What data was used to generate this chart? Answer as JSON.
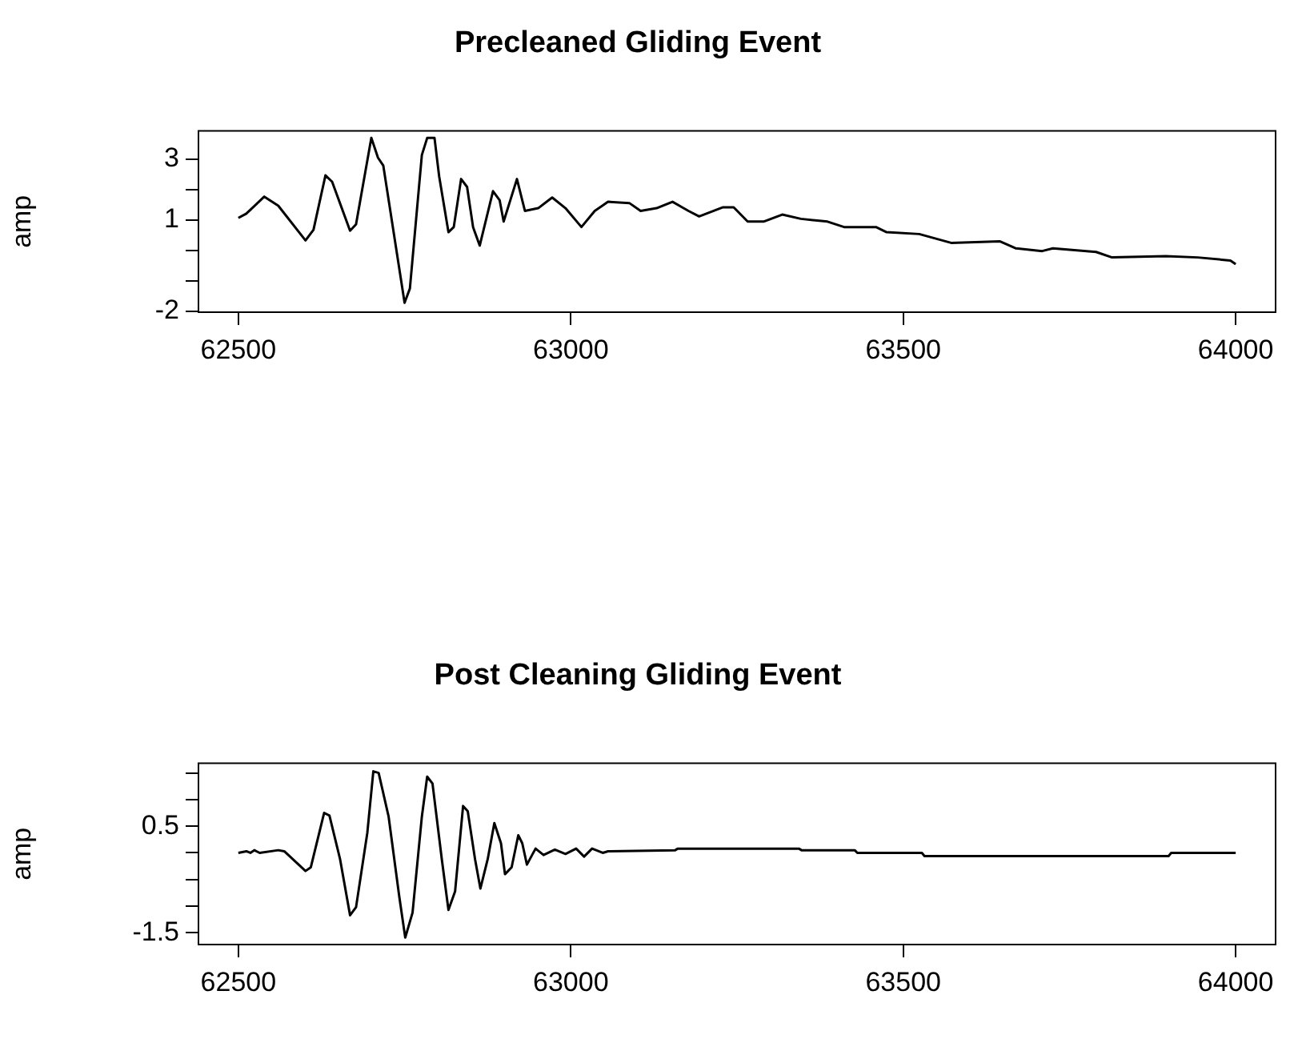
{
  "chart_data": [
    {
      "type": "line",
      "title": "Precleaned Gliding Event",
      "ylabel": "amp",
      "color": "#000000",
      "x": [
        62500,
        62512,
        62539,
        62560,
        62601,
        62613,
        62631,
        62641,
        62668,
        62677,
        62700,
        62710,
        62718,
        62750,
        62758,
        62776,
        62784,
        62795,
        62802,
        62816,
        62824,
        62835,
        62844,
        62853,
        62863,
        62883,
        62893,
        62899,
        62919,
        62931,
        62951,
        62972,
        62992,
        63016,
        63036,
        63056,
        63088,
        63105,
        63129,
        63153,
        63177,
        63193,
        63229,
        63245,
        63266,
        63290,
        63318,
        63346,
        63386,
        63411,
        63459,
        63475,
        63524,
        63572,
        63645,
        63669,
        63709,
        63725,
        63790,
        63814,
        63895,
        63943,
        63992,
        64000
      ],
      "values": [
        1.07,
        1.21,
        1.77,
        1.47,
        0.33,
        0.68,
        2.47,
        2.26,
        0.65,
        0.86,
        3.7,
        3.05,
        2.79,
        -1.72,
        -1.25,
        3.14,
        3.7,
        3.7,
        2.44,
        0.6,
        0.77,
        2.35,
        2.09,
        0.77,
        0.16,
        1.95,
        1.65,
        0.95,
        2.35,
        1.3,
        1.39,
        1.74,
        1.39,
        0.77,
        1.3,
        1.6,
        1.56,
        1.3,
        1.39,
        1.6,
        1.3,
        1.12,
        1.42,
        1.42,
        0.95,
        0.95,
        1.18,
        1.04,
        0.95,
        0.77,
        0.77,
        0.6,
        0.54,
        0.25,
        0.3,
        0.07,
        -0.02,
        0.07,
        -0.05,
        -0.23,
        -0.19,
        -0.23,
        -0.33,
        -0.45
      ],
      "xlim": [
        62440,
        64060
      ],
      "xticks": [
        62500,
        63000,
        63500,
        64000
      ],
      "ylim": [
        -2.03,
        3.93
      ],
      "yticks": [
        -2,
        {
          "value": -1,
          "label": null
        },
        {
          "value": 0,
          "label": null
        },
        1,
        {
          "value": 2,
          "label": null
        },
        3
      ]
    },
    {
      "type": "line",
      "title": "Post Cleaning Gliding Event",
      "ylabel": "amp",
      "color": "#000000",
      "x": [
        62500,
        62512,
        62518,
        62524,
        62532,
        62560,
        62569,
        62601,
        62609,
        62629,
        62637,
        62653,
        62668,
        62677,
        62694,
        62703,
        62711,
        62726,
        62742,
        62751,
        62762,
        62776,
        62784,
        62792,
        62806,
        62816,
        62826,
        62838,
        62845,
        62856,
        62864,
        62875,
        62885,
        62895,
        62901,
        62911,
        62921,
        62927,
        62934,
        62947,
        62959,
        62976,
        62992,
        63008,
        63020,
        63032,
        63048,
        63056,
        63157,
        63161,
        63343,
        63347,
        63427,
        63431,
        63528,
        63532,
        63899,
        63903,
        64000
      ],
      "values": [
        0,
        0.03,
        0,
        0.05,
        0,
        0.05,
        0.03,
        -0.34,
        -0.27,
        0.75,
        0.7,
        -0.12,
        -1.17,
        -1.02,
        0.38,
        1.53,
        1.5,
        0.68,
        -0.82,
        -1.59,
        -1.12,
        0.68,
        1.43,
        1.3,
        -0.12,
        -1.07,
        -0.72,
        0.88,
        0.78,
        -0.12,
        -0.67,
        -0.12,
        0.56,
        0.18,
        -0.4,
        -0.27,
        0.33,
        0.18,
        -0.22,
        0.08,
        -0.04,
        0.06,
        -0.02,
        0.08,
        -0.07,
        0.08,
        0,
        0.03,
        0.05,
        0.08,
        0.08,
        0.05,
        0.05,
        0,
        0,
        -0.06,
        -0.06,
        0,
        0
      ],
      "xlim": [
        62440,
        64060
      ],
      "xticks": [
        62500,
        63000,
        63500,
        64000
      ],
      "ylim": [
        -1.72,
        1.68
      ],
      "yticks": [
        {
          "value": -1.5,
          "label": "-1.5"
        },
        {
          "value": -1,
          "label": null
        },
        {
          "value": -0.5,
          "label": null
        },
        {
          "value": 0,
          "label": null
        },
        {
          "value": 0.5,
          "label": "0.5"
        },
        {
          "value": 1,
          "label": null
        },
        {
          "value": 1.5,
          "label": null
        }
      ]
    }
  ]
}
